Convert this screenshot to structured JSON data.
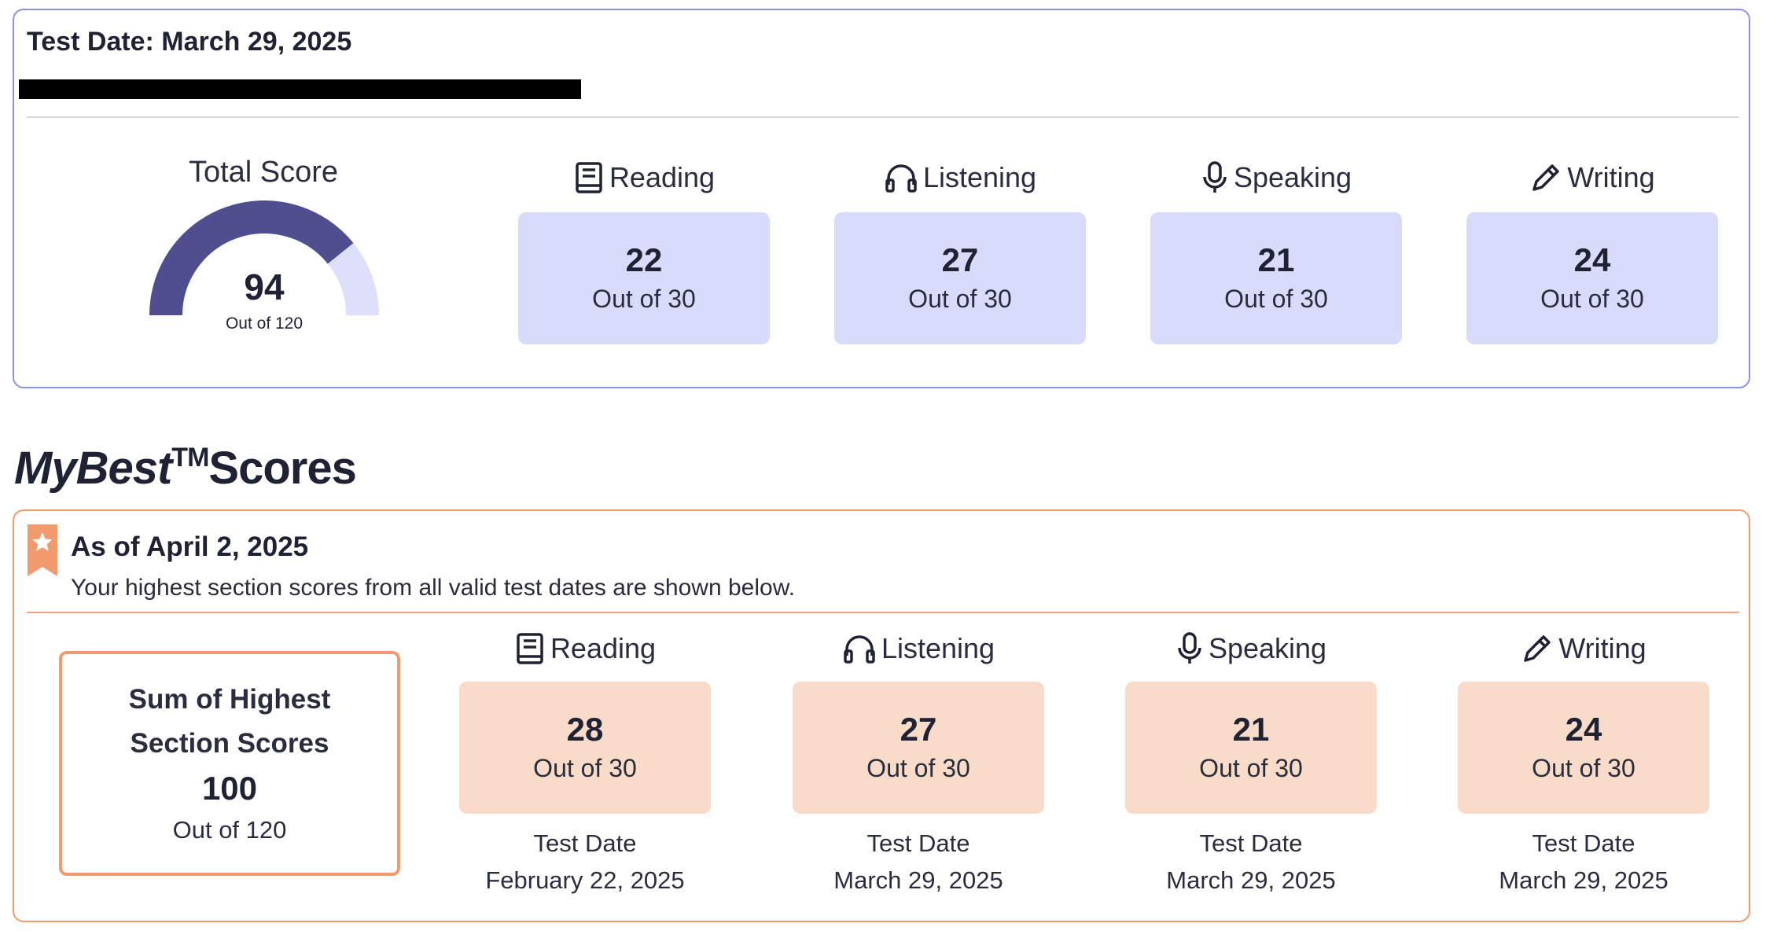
{
  "current_test": {
    "test_date_label": "Test Date: March 29, 2025",
    "total_title": "Total Score",
    "total_value": "94",
    "total_out_of": "Out of 120",
    "gauge_fraction": 0.7833,
    "sections": [
      {
        "name": "Reading",
        "icon": "book-icon",
        "value": "22",
        "out_of": "Out of 30"
      },
      {
        "name": "Listening",
        "icon": "headphones-icon",
        "value": "27",
        "out_of": "Out of 30"
      },
      {
        "name": "Speaking",
        "icon": "microphone-icon",
        "value": "21",
        "out_of": "Out of 30"
      },
      {
        "name": "Writing",
        "icon": "pencil-icon",
        "value": "24",
        "out_of": "Out of 30"
      }
    ]
  },
  "mybest": {
    "title_italic": "MyBest",
    "title_tm": "TM",
    "title_rest": "Scores",
    "as_of": "As of April 2, 2025",
    "description": "Your highest section scores from all valid test dates are shown below.",
    "sum_title": "Sum of Highest Section Scores",
    "sum_value": "100",
    "sum_out_of": "Out of 120",
    "test_date_caption": "Test Date",
    "sections": [
      {
        "name": "Reading",
        "icon": "book-icon",
        "value": "28",
        "out_of": "Out of 30",
        "test_date": "February 22, 2025"
      },
      {
        "name": "Listening",
        "icon": "headphones-icon",
        "value": "27",
        "out_of": "Out of 30",
        "test_date": "March 29, 2025"
      },
      {
        "name": "Speaking",
        "icon": "microphone-icon",
        "value": "21",
        "out_of": "Out of 30",
        "test_date": "March 29, 2025"
      },
      {
        "name": "Writing",
        "icon": "pencil-icon",
        "value": "24",
        "out_of": "Out of 30",
        "test_date": "March 29, 2025"
      }
    ]
  },
  "colors": {
    "gauge_fill": "#4f4e8f",
    "gauge_track": "#dedffa",
    "score_box_blue": "#d9dbfa",
    "score_box_peach": "#f8dbc9",
    "accent_orange": "#f29a6e",
    "card_border_blue": "#8d92e6"
  }
}
